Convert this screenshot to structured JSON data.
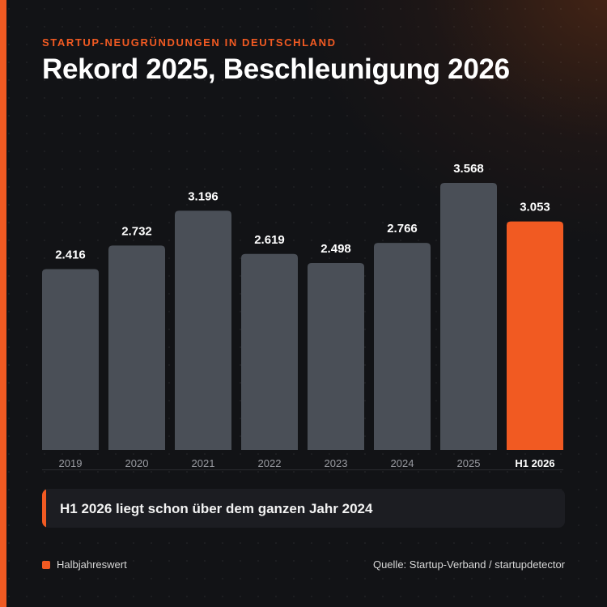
{
  "header": {
    "eyebrow": "STARTUP-NEUGRÜNDUNGEN IN DEUTSCHLAND",
    "title": "Rekord 2025, Beschleunigung 2026"
  },
  "chart_data": {
    "type": "bar",
    "categories": [
      "2019",
      "2020",
      "2021",
      "2022",
      "2023",
      "2024",
      "2025",
      "H1 2026"
    ],
    "values": [
      2416,
      2732,
      3196,
      2619,
      2498,
      2766,
      3568,
      3053
    ],
    "value_labels": [
      "2.416",
      "2.732",
      "3.196",
      "2.619",
      "2.498",
      "2.766",
      "3.568",
      "3.053"
    ],
    "highlight_index": 7,
    "ylim": [
      0,
      3568
    ],
    "grid": false,
    "colors": {
      "bar": "#4a4f57",
      "highlight": "#f15a22"
    }
  },
  "callout": {
    "text": "H1 2026 liegt schon über dem ganzen Jahr 2024"
  },
  "legend": {
    "label": "Halbjahreswert",
    "color": "#f15a22"
  },
  "footer": {
    "source": "Quelle: Startup-Verband / startupdetector"
  }
}
